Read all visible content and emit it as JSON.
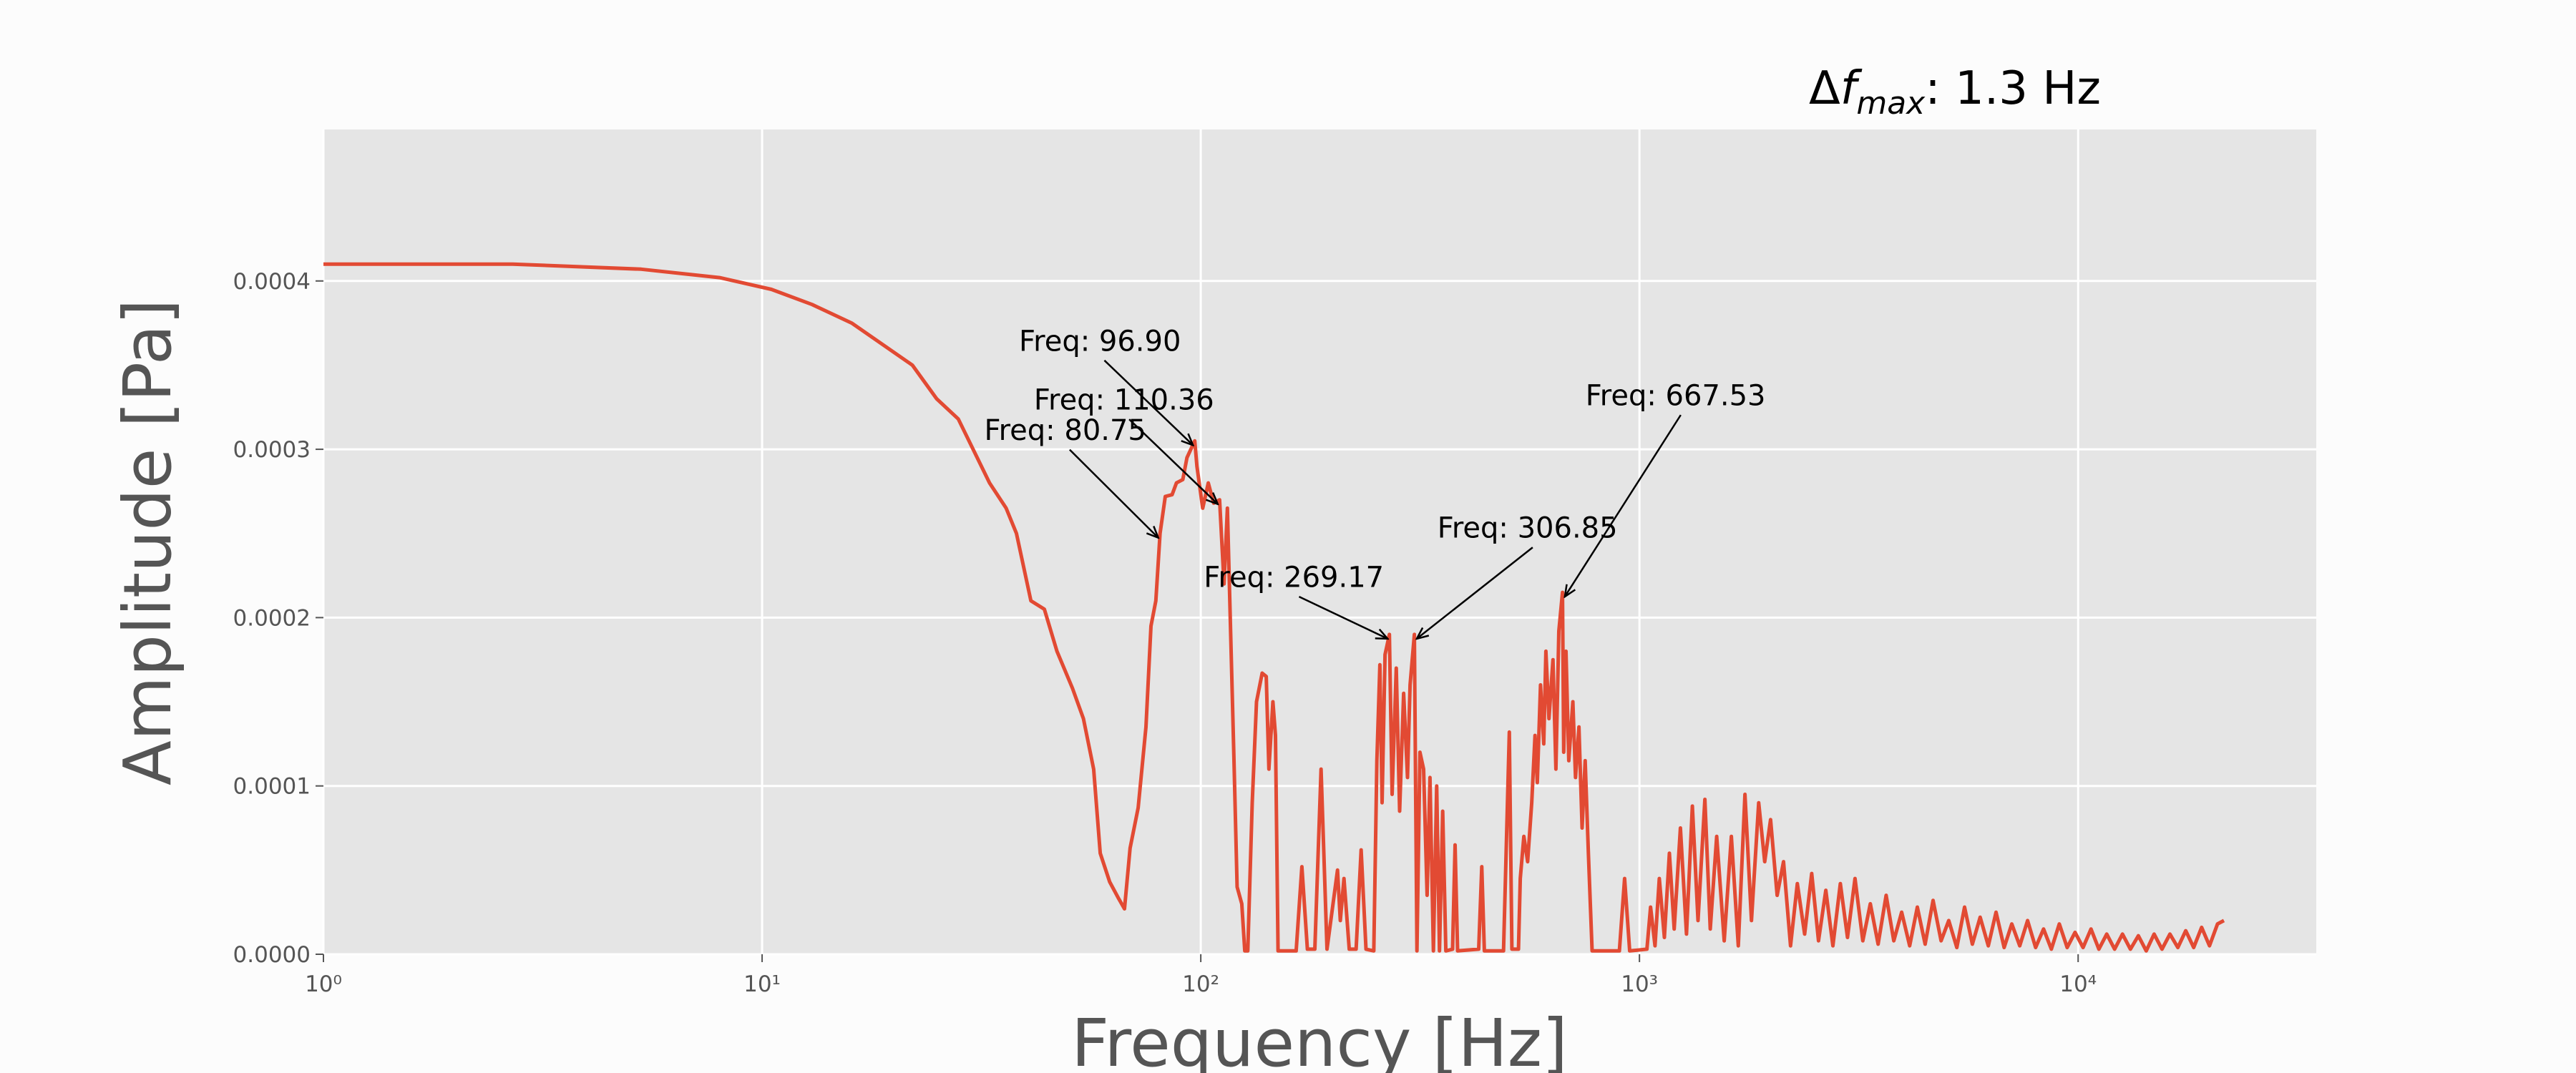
{
  "chart_data": {
    "type": "line",
    "title_parts": [
      "Δ",
      "f",
      "max",
      ": 1.3 Hz"
    ],
    "x_label": "Frequency [Hz]",
    "y_label": "Amplitude [Pa]",
    "xscale": "log",
    "grid": true,
    "xlim": [
      1,
      34900
    ],
    "ylim": [
      0,
      0.00049
    ],
    "xticks": [
      {
        "value": 1,
        "label": "10⁰"
      },
      {
        "value": 10,
        "label": "10¹"
      },
      {
        "value": 100,
        "label": "10²"
      },
      {
        "value": 1000,
        "label": "10³"
      },
      {
        "value": 10000,
        "label": "10⁴"
      }
    ],
    "yticks": [
      {
        "value": 0,
        "label": "0.0000"
      },
      {
        "value": 0.0001,
        "label": "0.0001"
      },
      {
        "value": 0.0002,
        "label": "0.0002"
      },
      {
        "value": 0.0003,
        "label": "0.0003"
      },
      {
        "value": 0.0004,
        "label": "0.0004"
      }
    ],
    "series": [
      {
        "color": "#e24a33",
        "x": [
          1,
          2.7,
          5.3,
          8,
          10.5,
          13,
          16,
          22,
          25,
          28,
          33,
          36,
          38,
          41,
          44,
          47,
          51,
          54,
          57,
          59,
          62,
          65,
          67,
          69,
          72,
          75,
          77,
          79,
          80.75,
          83,
          86,
          88,
          91,
          93,
          96.9,
          98,
          101,
          104,
          107,
          110.36,
          113,
          115,
          117,
          119,
          121,
          124,
          126,
          128,
          131,
          134,
          138,
          141,
          143,
          146,
          148,
          150,
          165,
          170,
          175,
          182,
          188,
          194,
          205,
          208,
          212,
          218,
          226,
          232,
          238,
          248,
          252,
          256,
          259,
          263,
          269.17,
          273,
          279,
          284,
          290,
          296,
          300,
          306.85,
          311,
          316,
          322,
          328,
          333,
          339,
          345,
          350,
          356,
          362,
          375,
          380,
          385,
          430,
          437,
          443,
          490,
          505,
          512,
          530,
          535,
          545,
          556,
          568,
          578,
          585,
          595,
          605,
          612,
          622,
          635,
          645,
          655,
          667.53,
          672,
          680,
          690,
          705,
          715,
          728,
          740,
          752,
          765,
          780,
          900,
          925,
          950,
          1040,
          1060,
          1085,
          1110,
          1140,
          1170,
          1200,
          1240,
          1280,
          1320,
          1360,
          1410,
          1450,
          1500,
          1560,
          1620,
          1680,
          1740,
          1800,
          1870,
          1930,
          1990,
          2060,
          2130,
          2210,
          2290,
          2380,
          2470,
          2560,
          2660,
          2760,
          2870,
          2980,
          3100,
          3230,
          3360,
          3500,
          3650,
          3800,
          3960,
          4130,
          4300,
          4480,
          4670,
          4870,
          5070,
          5290,
          5510,
          5740,
          5980,
          6240,
          6500,
          6780,
          7060,
          7360,
          7670,
          8000,
          8340,
          8690,
          9060,
          9440,
          9840,
          10260,
          10700,
          11150,
          11620,
          12110,
          12620,
          13160,
          13720,
          14300,
          14900,
          15530,
          16190,
          16880,
          17590,
          18340,
          19120,
          19930,
          20780,
          21500
        ],
        "values": [
          0.00041,
          0.00041,
          0.000407,
          0.000402,
          0.000395,
          0.000386,
          0.000375,
          0.00035,
          0.00033,
          0.000318,
          0.00028,
          0.000265,
          0.00025,
          0.00021,
          0.000205,
          0.00018,
          0.000158,
          0.00014,
          0.00011,
          6e-05,
          4.3e-05,
          3.3e-05,
          2.7e-05,
          6.3e-05,
          8.7e-05,
          0.000135,
          0.000195,
          0.00021,
          0.00025,
          0.000272,
          0.000273,
          0.00028,
          0.000282,
          0.000295,
          0.000305,
          0.00029,
          0.000265,
          0.00028,
          0.000268,
          0.00027,
          0.00022,
          0.000265,
          0.00019,
          0.000117,
          4e-05,
          3e-05,
          2e-06,
          2e-06,
          9e-05,
          0.00015,
          0.000167,
          0.000165,
          0.00011,
          0.00015,
          0.00013,
          2e-06,
          2e-06,
          5.2e-05,
          3e-06,
          3e-06,
          0.00011,
          3e-06,
          5e-05,
          2e-05,
          4.5e-05,
          3e-06,
          3e-06,
          6.2e-05,
          3e-06,
          2e-06,
          0.000115,
          0.000172,
          9e-05,
          0.000178,
          0.00019,
          9.5e-05,
          0.00017,
          8.5e-05,
          0.000155,
          0.000105,
          0.00016,
          0.00019,
          2e-06,
          0.00012,
          0.00011,
          3.5e-05,
          0.000105,
          2e-06,
          0.0001,
          2e-06,
          8.5e-05,
          2e-06,
          3e-06,
          6.5e-05,
          2e-06,
          3e-06,
          5.2e-05,
          2e-06,
          2e-06,
          0.000132,
          3e-06,
          3e-06,
          4.5e-05,
          7e-05,
          5.5e-05,
          9e-05,
          0.00013,
          0.000102,
          0.00016,
          0.000125,
          0.00018,
          0.00014,
          0.000175,
          0.00011,
          0.000192,
          0.000215,
          0.00012,
          0.00018,
          0.000115,
          0.00015,
          0.000105,
          0.000135,
          7.5e-05,
          0.000115,
          6e-05,
          2e-06,
          2e-06,
          4.5e-05,
          2e-06,
          3e-06,
          2.8e-05,
          5e-06,
          4.5e-05,
          1e-05,
          6e-05,
          1.5e-05,
          7.5e-05,
          1.2e-05,
          8.8e-05,
          2e-05,
          9.2e-05,
          1.5e-05,
          7e-05,
          8e-06,
          7e-05,
          5e-06,
          9.5e-05,
          2e-05,
          9e-05,
          5.5e-05,
          8e-05,
          3.5e-05,
          5.5e-05,
          5e-06,
          4.2e-05,
          1.2e-05,
          4.8e-05,
          8e-06,
          3.8e-05,
          5e-06,
          4.2e-05,
          1e-05,
          4.5e-05,
          8e-06,
          3e-05,
          6e-06,
          3.5e-05,
          8e-06,
          2.5e-05,
          5e-06,
          2.8e-05,
          6e-06,
          3.2e-05,
          8e-06,
          2e-05,
          4e-06,
          2.8e-05,
          6e-06,
          2.2e-05,
          5e-06,
          2.5e-05,
          4e-06,
          1.8e-05,
          5e-06,
          2e-05,
          4e-06,
          1.5e-05,
          3e-06,
          1.8e-05,
          4e-06,
          1.3e-05,
          4e-06,
          1.5e-05,
          3e-06,
          1.2e-05,
          3e-06,
          1.2e-05,
          3e-06,
          1.1e-05,
          2e-06,
          1.2e-05,
          3e-06,
          1.2e-05,
          4e-06,
          1.4e-05,
          4e-06,
          1.6e-05,
          5e-06,
          1.8e-05,
          2e-05
        ]
      }
    ],
    "annotations": [
      {
        "text": "Freq: 96.90",
        "x": 96.9,
        "y": 0.000305
      },
      {
        "text": "Freq: 110.36",
        "x": 110.36,
        "y": 0.00027
      },
      {
        "text": "Freq: 80.75",
        "x": 80.75,
        "y": 0.00025
      },
      {
        "text": "Freq: 269.17",
        "x": 269.17,
        "y": 0.00019
      },
      {
        "text": "Freq: 306.85",
        "x": 306.85,
        "y": 0.00019
      },
      {
        "text": "Freq: 667.53",
        "x": 667.53,
        "y": 0.000215
      }
    ]
  }
}
